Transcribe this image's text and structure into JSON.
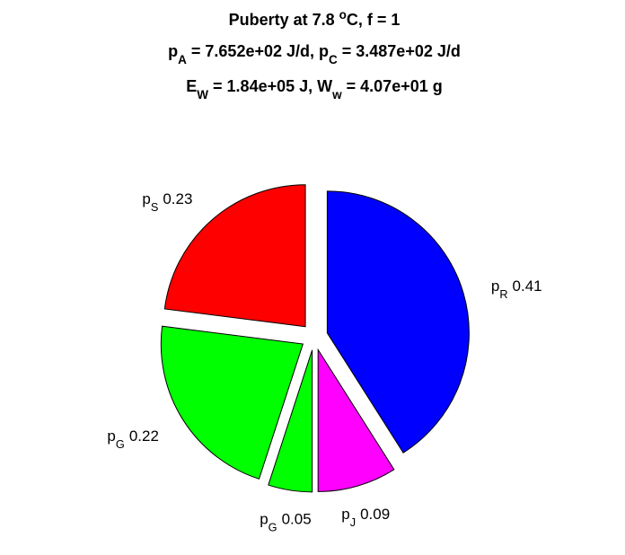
{
  "chart_data": {
    "type": "pie",
    "title": [
      [
        {
          "text": "Puberty at 7.8 "
        },
        {
          "text": "o",
          "script": "super"
        },
        {
          "text": "C, f = 1"
        }
      ],
      [
        {
          "text": "p"
        },
        {
          "text": "A",
          "script": "sub"
        },
        {
          "text": " = 7.652e+02 J/d,  p"
        },
        {
          "text": "C",
          "script": "sub"
        },
        {
          "text": " = 3.487e+02 J/d"
        }
      ],
      [
        {
          "text": "E"
        },
        {
          "text": "W",
          "script": "sub"
        },
        {
          "text": " = 1.84e+05 J, W"
        },
        {
          "text": "w",
          "script": "sub"
        },
        {
          "text": " = 4.07e+01 g"
        }
      ]
    ],
    "categories": [
      [
        {
          "text": "p"
        },
        {
          "text": "R",
          "script": "sub"
        }
      ],
      [
        {
          "text": "p"
        },
        {
          "text": "J",
          "script": "sub"
        }
      ],
      [
        {
          "text": "p"
        },
        {
          "text": "G",
          "script": "sub"
        }
      ],
      [
        {
          "text": "p"
        },
        {
          "text": "G",
          "script": "sub"
        }
      ],
      [
        {
          "text": "p"
        },
        {
          "text": "S",
          "script": "sub"
        }
      ]
    ],
    "values": [
      0.41,
      0.09,
      0.05,
      0.22,
      0.23
    ],
    "colors": [
      "#0000ff",
      "#ff00ff",
      "#00ff00",
      "#00ff00",
      "#ff0000"
    ],
    "exploded": true
  }
}
